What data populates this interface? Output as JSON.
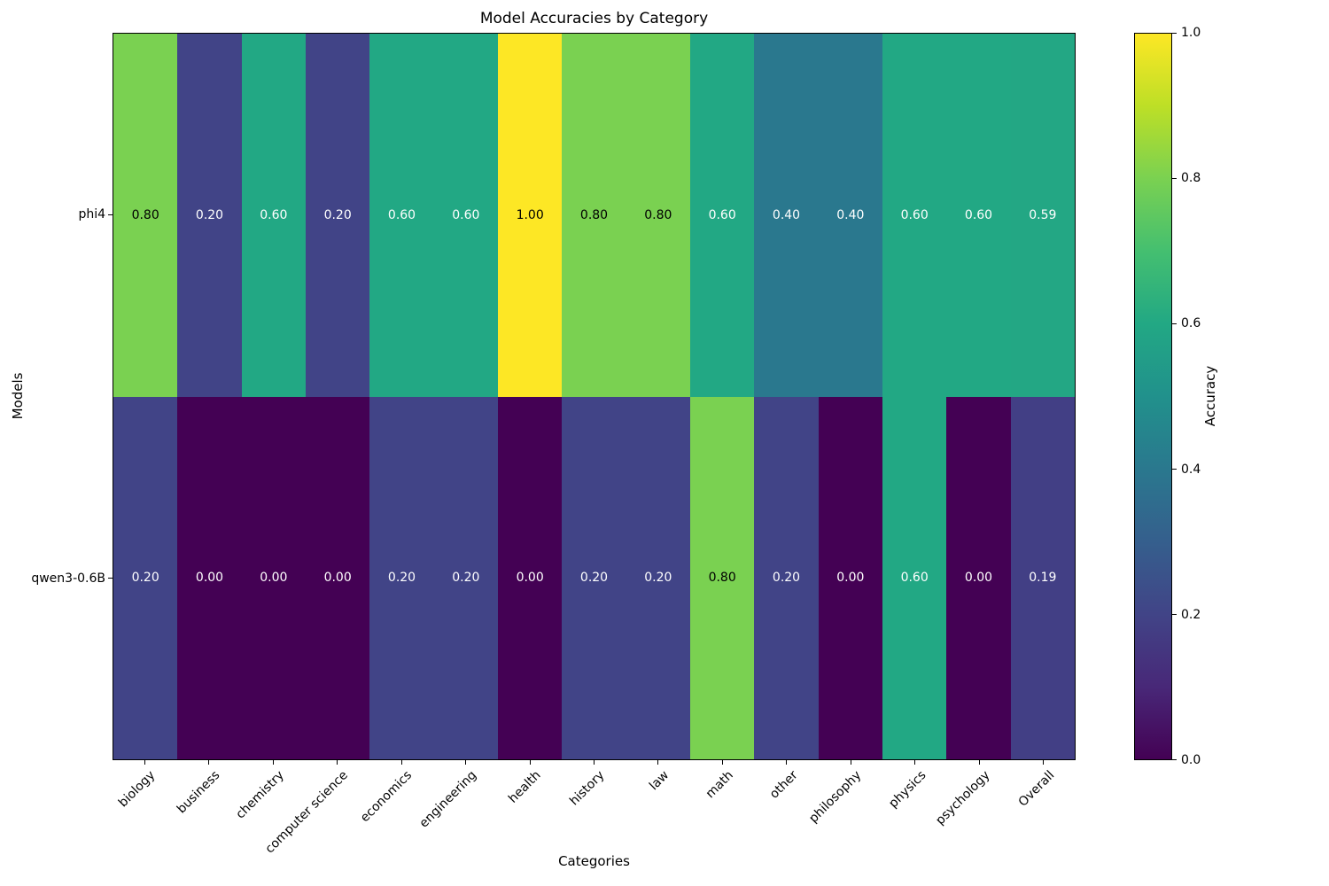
{
  "title": "Model Accuracies by Category",
  "colors": {
    "background": "#ffffff",
    "axis": "#000000",
    "text": "#000000",
    "cell_text_light": "#ffffff",
    "cell_text_dark": "#000000",
    "value_colors": {
      "0": "#440154",
      "0.19": "#423f85",
      "0.2": "#414487",
      "0.4": "#2a788e",
      "0.59": "#23a784",
      "0.6": "#22a884",
      "0.8": "#7ad151",
      "1": "#fde725"
    },
    "viridis_stops": [
      "#440154",
      "#482878",
      "#414487",
      "#355f8d",
      "#2a788e",
      "#21918c",
      "#22a884",
      "#44bf70",
      "#7ad151",
      "#bddf26",
      "#fde725"
    ]
  },
  "chart_data": {
    "type": "heatmap",
    "title": "Model Accuracies by Category",
    "xlabel": "Categories",
    "ylabel": "Models",
    "colorbar_label": "Accuracy",
    "colormap": "viridis",
    "vmin": 0,
    "vmax": 1,
    "legend_position": "right-colorbar",
    "grid": false,
    "categories": [
      "biology",
      "business",
      "chemistry",
      "computer science",
      "economics",
      "engineering",
      "health",
      "history",
      "law",
      "math",
      "other",
      "philosophy",
      "physics",
      "psychology",
      "Overall"
    ],
    "series": [
      {
        "name": "phi4",
        "values": [
          0.8,
          0.2,
          0.6,
          0.2,
          0.6,
          0.6,
          1.0,
          0.8,
          0.8,
          0.6,
          0.4,
          0.4,
          0.6,
          0.6,
          0.59
        ]
      },
      {
        "name": "qwen3-0.6B",
        "values": [
          0.2,
          0.0,
          0.0,
          0.0,
          0.2,
          0.2,
          0.0,
          0.2,
          0.2,
          0.8,
          0.2,
          0.0,
          0.6,
          0.0,
          0.19
        ]
      }
    ],
    "colorbar_ticks": [
      1.0,
      0.8,
      0.6,
      0.4,
      0.2,
      0.0
    ],
    "value_format_decimals": 2,
    "black_text_threshold": 0.7
  }
}
